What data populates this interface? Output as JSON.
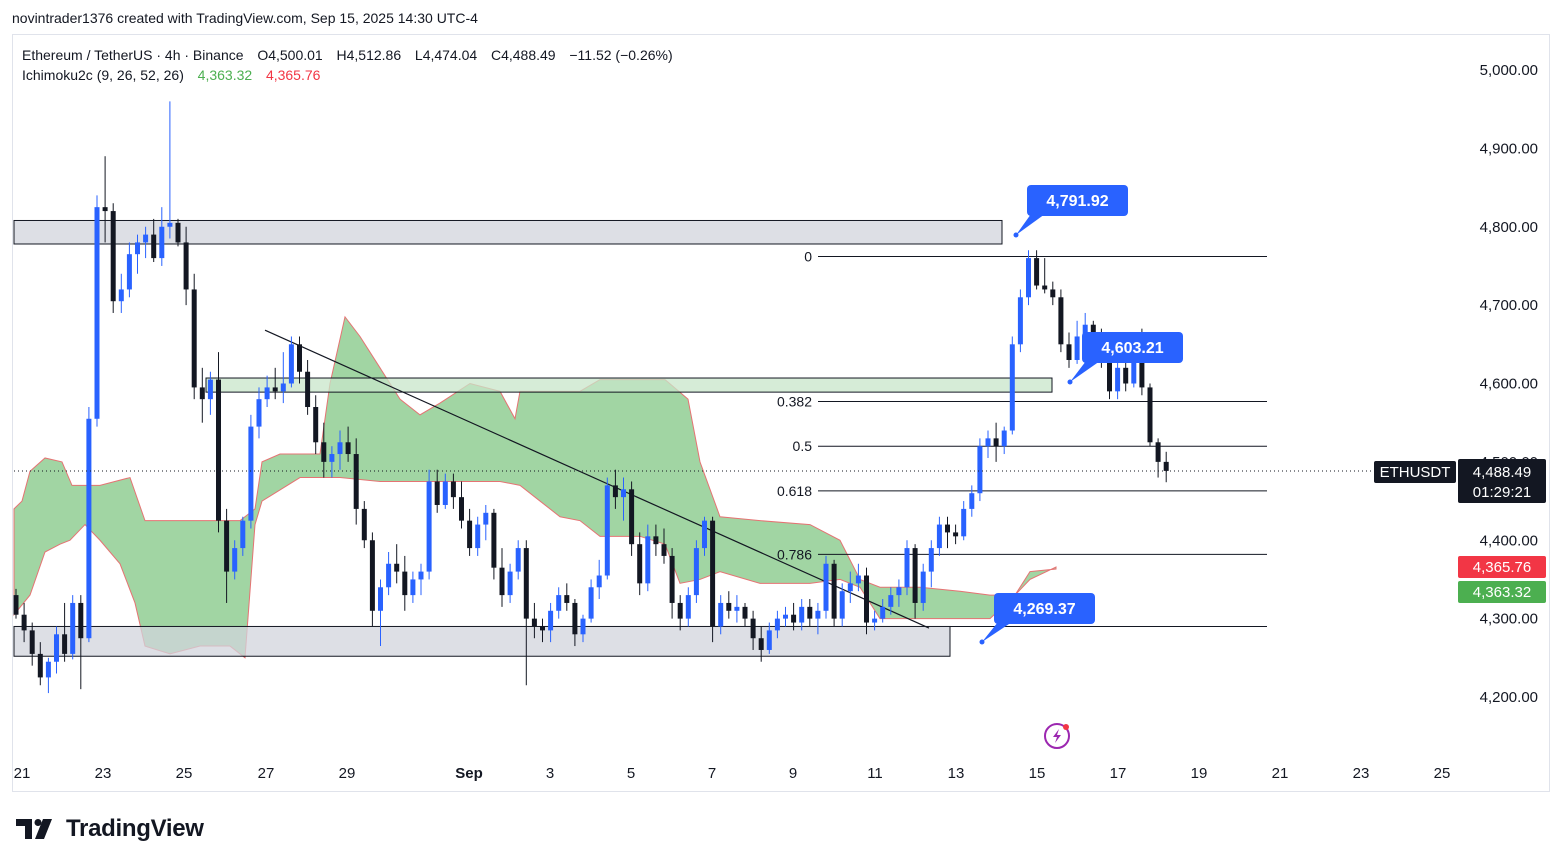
{
  "header": {
    "attribution": "novintrader1376 created with TradingView.com, Sep 15, 2025 14:30 UTC-4"
  },
  "legend": {
    "symbol_line": "Ethereum / TetherUS · 4h · Binance",
    "open_label": "O",
    "open": "4,500.01",
    "high_label": "H",
    "high": "4,512.86",
    "low_label": "L",
    "low": "4,474.04",
    "close_label": "C",
    "close": "4,488.49",
    "change": "−11.52 (−0.26%)",
    "indicator_name": "Ichimoku2c (9, 26, 52, 26)",
    "indicator_value_a": "4,363.32",
    "indicator_value_b": "4,365.76"
  },
  "price_badges": {
    "symbol": "ETHUSDT",
    "last_price": "4,488.49",
    "countdown": "01:29:21",
    "ichimoku_b": "4,365.76",
    "ichimoku_a": "4,363.32"
  },
  "callouts": [
    {
      "label": "4,791.92",
      "price": 4791.92
    },
    {
      "label": "4,603.21",
      "price": 4603.21
    },
    {
      "label": "4,269.37",
      "price": 4269.37
    }
  ],
  "fib_levels": [
    {
      "label": "0",
      "price": 4762
    },
    {
      "label": "0.382",
      "price": 4577
    },
    {
      "label": "0.5",
      "price": 4520
    },
    {
      "label": "0.618",
      "price": 4463
    },
    {
      "label": "0.786",
      "price": 4382
    }
  ],
  "zones": [
    {
      "name": "resistance-zone",
      "top": 4808,
      "bottom": 4778,
      "color": "#d1d4dc"
    },
    {
      "name": "mid-zone",
      "top": 4607,
      "bottom": 4589,
      "color": "#c8e6c9"
    },
    {
      "name": "support-zone",
      "top": 4290,
      "bottom": 4252,
      "color": "#d1d4dc"
    }
  ],
  "colors": {
    "up": "#2962ff",
    "down": "#131722",
    "cloud": "#81c784",
    "cloud_border": "#e57373",
    "callout": "#2962ff",
    "badge_red": "#f23645",
    "badge_green": "#4caf50"
  },
  "footer": {
    "brand": "TradingView"
  },
  "chart_data": {
    "type": "candlestick",
    "title": "Ethereum / TetherUS · 4h · Binance",
    "ylim": [
      4150,
      5030
    ],
    "y_ticks": [
      4200,
      4300,
      4400,
      4500,
      4600,
      4700,
      4800,
      4900,
      5000
    ],
    "y_tick_labels": [
      "4,200.00",
      "4,300.00",
      "4,400.00",
      "4,500.00",
      "4,600.00",
      "4,700.00",
      "4,800.00",
      "4,900.00",
      "5,000.00"
    ],
    "x_tick_labels": [
      "21",
      "23",
      "25",
      "27",
      "29",
      "Sep",
      "3",
      "5",
      "7",
      "9",
      "11",
      "13",
      "15",
      "17",
      "19",
      "21",
      "23",
      "25"
    ],
    "candles": [
      [
        4330,
        4338,
        4300,
        4305
      ],
      [
        4305,
        4320,
        4270,
        4285
      ],
      [
        4285,
        4295,
        4240,
        4255
      ],
      [
        4255,
        4270,
        4215,
        4225
      ],
      [
        4225,
        4250,
        4205,
        4245
      ],
      [
        4245,
        4290,
        4230,
        4280
      ],
      [
        4280,
        4320,
        4245,
        4255
      ],
      [
        4255,
        4330,
        4248,
        4320
      ],
      [
        4320,
        4330,
        4210,
        4275
      ],
      [
        4275,
        4570,
        4270,
        4555
      ],
      [
        4555,
        4840,
        4545,
        4825
      ],
      [
        4825,
        4890,
        4780,
        4820
      ],
      [
        4820,
        4830,
        4690,
        4705
      ],
      [
        4705,
        4740,
        4690,
        4720
      ],
      [
        4720,
        4780,
        4710,
        4765
      ],
      [
        4765,
        4790,
        4740,
        4780
      ],
      [
        4780,
        4800,
        4760,
        4790
      ],
      [
        4790,
        4810,
        4755,
        4760
      ],
      [
        4760,
        4825,
        4750,
        4800
      ],
      [
        4800,
        4960,
        4785,
        4805
      ],
      [
        4805,
        4810,
        4775,
        4780
      ],
      [
        4780,
        4800,
        4700,
        4720
      ],
      [
        4720,
        4740,
        4580,
        4595
      ],
      [
        4595,
        4620,
        4550,
        4580
      ],
      [
        4580,
        4615,
        4560,
        4605
      ],
      [
        4605,
        4640,
        4410,
        4425
      ],
      [
        4425,
        4440,
        4320,
        4360
      ],
      [
        4360,
        4400,
        4350,
        4390
      ],
      [
        4390,
        4430,
        4380,
        4425
      ],
      [
        4425,
        4560,
        4415,
        4545
      ],
      [
        4545,
        4595,
        4530,
        4580
      ],
      [
        4580,
        4610,
        4570,
        4595
      ],
      [
        4595,
        4620,
        4580,
        4590
      ],
      [
        4590,
        4640,
        4575,
        4600
      ],
      [
        4600,
        4660,
        4595,
        4650
      ],
      [
        4650,
        4660,
        4600,
        4615
      ],
      [
        4615,
        4630,
        4560,
        4570
      ],
      [
        4570,
        4585,
        4510,
        4525
      ],
      [
        4525,
        4550,
        4480,
        4500
      ],
      [
        4500,
        4520,
        4480,
        4510
      ],
      [
        4510,
        4540,
        4490,
        4525
      ],
      [
        4525,
        4545,
        4500,
        4510
      ],
      [
        4510,
        4530,
        4420,
        4440
      ],
      [
        4440,
        4450,
        4390,
        4400
      ],
      [
        4400,
        4410,
        4290,
        4310
      ],
      [
        4310,
        4350,
        4265,
        4340
      ],
      [
        4340,
        4385,
        4330,
        4370
      ],
      [
        4370,
        4395,
        4345,
        4360
      ],
      [
        4360,
        4380,
        4310,
        4330
      ],
      [
        4330,
        4360,
        4320,
        4350
      ],
      [
        4350,
        4370,
        4330,
        4360
      ],
      [
        4360,
        4490,
        4350,
        4475
      ],
      [
        4475,
        4490,
        4435,
        4445
      ],
      [
        4445,
        4485,
        4440,
        4475
      ],
      [
        4475,
        4485,
        4440,
        4455
      ],
      [
        4455,
        4475,
        4415,
        4425
      ],
      [
        4425,
        4440,
        4380,
        4390
      ],
      [
        4390,
        4430,
        4380,
        4420
      ],
      [
        4420,
        4445,
        4400,
        4435
      ],
      [
        4435,
        4440,
        4350,
        4365
      ],
      [
        4365,
        4390,
        4315,
        4330
      ],
      [
        4330,
        4370,
        4320,
        4360
      ],
      [
        4360,
        4400,
        4350,
        4390
      ],
      [
        4390,
        4400,
        4215,
        4300
      ],
      [
        4300,
        4320,
        4275,
        4290
      ],
      [
        4290,
        4300,
        4270,
        4285
      ],
      [
        4285,
        4320,
        4270,
        4310
      ],
      [
        4310,
        4340,
        4300,
        4330
      ],
      [
        4330,
        4345,
        4310,
        4320
      ],
      [
        4320,
        4325,
        4265,
        4280
      ],
      [
        4280,
        4305,
        4270,
        4300
      ],
      [
        4300,
        4350,
        4295,
        4340
      ],
      [
        4340,
        4375,
        4325,
        4355
      ],
      [
        4355,
        4480,
        4350,
        4470
      ],
      [
        4470,
        4490,
        4440,
        4455
      ],
      [
        4455,
        4480,
        4425,
        4465
      ],
      [
        4465,
        4475,
        4380,
        4395
      ],
      [
        4395,
        4410,
        4330,
        4345
      ],
      [
        4345,
        4420,
        4335,
        4405
      ],
      [
        4405,
        4420,
        4380,
        4395
      ],
      [
        4395,
        4415,
        4370,
        4380
      ],
      [
        4380,
        4390,
        4300,
        4320
      ],
      [
        4320,
        4330,
        4285,
        4300
      ],
      [
        4300,
        4340,
        4290,
        4330
      ],
      [
        4330,
        4400,
        4320,
        4390
      ],
      [
        4390,
        4430,
        4380,
        4425
      ],
      [
        4425,
        4430,
        4270,
        4290
      ],
      [
        4290,
        4330,
        4280,
        4320
      ],
      [
        4320,
        4335,
        4300,
        4310
      ],
      [
        4310,
        4330,
        4295,
        4315
      ],
      [
        4315,
        4320,
        4290,
        4300
      ],
      [
        4300,
        4310,
        4260,
        4275
      ],
      [
        4275,
        4290,
        4245,
        4260
      ],
      [
        4260,
        4295,
        4255,
        4285
      ],
      [
        4285,
        4310,
        4275,
        4300
      ],
      [
        4300,
        4315,
        4290,
        4305
      ],
      [
        4305,
        4320,
        4285,
        4295
      ],
      [
        4295,
        4325,
        4285,
        4315
      ],
      [
        4315,
        4325,
        4290,
        4300
      ],
      [
        4300,
        4320,
        4280,
        4310
      ],
      [
        4310,
        4380,
        4300,
        4370
      ],
      [
        4370,
        4375,
        4290,
        4300
      ],
      [
        4300,
        4345,
        4290,
        4335
      ],
      [
        4335,
        4360,
        4320,
        4345
      ],
      [
        4345,
        4370,
        4335,
        4355
      ],
      [
        4355,
        4365,
        4280,
        4295
      ],
      [
        4295,
        4310,
        4285,
        4300
      ],
      [
        4300,
        4325,
        4295,
        4315
      ],
      [
        4315,
        4340,
        4305,
        4330
      ],
      [
        4330,
        4350,
        4315,
        4340
      ],
      [
        4340,
        4400,
        4330,
        4390
      ],
      [
        4390,
        4395,
        4300,
        4320
      ],
      [
        4320,
        4370,
        4310,
        4360
      ],
      [
        4360,
        4400,
        4340,
        4390
      ],
      [
        4390,
        4430,
        4380,
        4420
      ],
      [
        4420,
        4430,
        4390,
        4410
      ],
      [
        4410,
        4420,
        4395,
        4405
      ],
      [
        4405,
        4450,
        4400,
        4440
      ],
      [
        4440,
        4470,
        4430,
        4460
      ],
      [
        4460,
        4530,
        4450,
        4520
      ],
      [
        4520,
        4540,
        4505,
        4530
      ],
      [
        4530,
        4550,
        4500,
        4520
      ],
      [
        4520,
        4545,
        4510,
        4540
      ],
      [
        4540,
        4660,
        4535,
        4650
      ],
      [
        4650,
        4720,
        4640,
        4710
      ],
      [
        4710,
        4770,
        4700,
        4760
      ],
      [
        4760,
        4770,
        4720,
        4725
      ],
      [
        4725,
        4760,
        4715,
        4720
      ],
      [
        4720,
        4730,
        4700,
        4710
      ],
      [
        4710,
        4720,
        4640,
        4650
      ],
      [
        4650,
        4665,
        4620,
        4630
      ],
      [
        4630,
        4680,
        4625,
        4660
      ],
      [
        4660,
        4690,
        4640,
        4675
      ],
      [
        4675,
        4680,
        4640,
        4655
      ],
      [
        4655,
        4670,
        4620,
        4635
      ],
      [
        4635,
        4640,
        4580,
        4590
      ],
      [
        4590,
        4630,
        4580,
        4620
      ],
      [
        4620,
        4640,
        4590,
        4600
      ],
      [
        4600,
        4650,
        4595,
        4640
      ],
      [
        4640,
        4670,
        4585,
        4595
      ],
      [
        4595,
        4600,
        4520,
        4525
      ],
      [
        4525,
        4530,
        4480,
        4500
      ],
      [
        4500,
        4512.86,
        4474.04,
        4488.49
      ]
    ],
    "ichimoku_cloud": {
      "span_a_last": 4363.32,
      "span_b_last": 4365.76
    },
    "trendline": {
      "from_price": 4668,
      "to_price": 4288
    },
    "grid": false
  }
}
